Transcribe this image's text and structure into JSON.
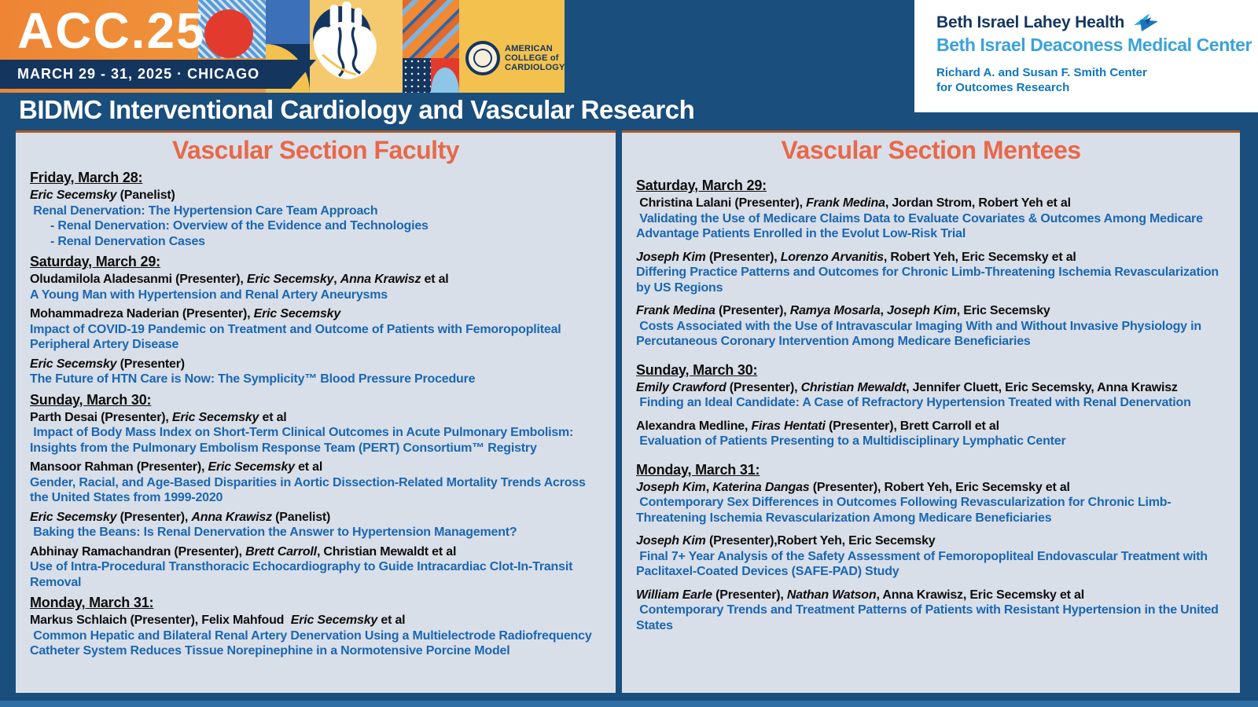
{
  "header": {
    "acc": {
      "logo_text": "ACC.25",
      "dates": "MARCH 29 - 31, 2025 · CHICAGO",
      "org_lines": [
        "AMERICAN",
        "COLLEGE of",
        "CARDIOLOGY."
      ]
    },
    "bilh": {
      "line1": "Beth Israel Lahey Health",
      "line2": "Beth Israel Deaconess Medical Center",
      "center_line1": "Richard A. and Susan F. Smith Center",
      "center_line2": "for Outcomes Research"
    },
    "page_title": "BIDMC Interventional Cardiology and Vascular Research"
  },
  "colors": {
    "background_navy": "#1a4e7d",
    "panel_bg": "#d9dfe8",
    "heading_orange": "#e8684a",
    "title_blue": "#1a67b3",
    "text_black": "#0d0d0d",
    "banner_orange": "#ee8434",
    "banner_gold": "#f2c14e",
    "ribbon_navy": "#14355e",
    "bilh_navy": "#14365f",
    "bidmc_blue": "#3aa2da",
    "smith_blue": "#0f76bf"
  },
  "panels": [
    {
      "id": "faculty",
      "title": "Vascular Section Faculty",
      "groups": [
        {
          "date": "Friday, March 28:",
          "entries": [
            {
              "authors": [
                {
                  "t": "Eric Secemsky",
                  "i": true
                },
                {
                  "t": " (Panelist)"
                }
              ],
              "titles": [
                {
                  "text": " Renal Denervation: The Hypertension Care Team Approach"
                },
                {
                  "text": "- Renal Denervation: Overview of the Evidence and Technologies",
                  "indent": true
                },
                {
                  "text": "- Renal Denervation Cases",
                  "indent": true
                }
              ]
            }
          ]
        },
        {
          "date": "Saturday, March 29:",
          "entries": [
            {
              "authors": [
                {
                  "t": "Oludamilola Aladesanmi (Presenter), "
                },
                {
                  "t": "Eric Secemsky",
                  "i": true
                },
                {
                  "t": ", "
                },
                {
                  "t": "Anna Krawisz",
                  "i": true
                },
                {
                  "t": " et al"
                }
              ],
              "titles": [
                {
                  "text": "A Young Man with Hypertension and Renal Artery Aneurysms"
                }
              ]
            },
            {
              "authors": [
                {
                  "t": "Mohammadreza Naderian (Presenter), "
                },
                {
                  "t": "Eric Secemsky",
                  "i": true
                }
              ],
              "titles": [
                {
                  "text": "Impact of COVID-19 Pandemic on Treatment and Outcome of Patients with Femoropopliteal Peripheral Artery Disease"
                }
              ]
            },
            {
              "authors": [
                {
                  "t": "Eric Secemsky",
                  "i": true
                },
                {
                  "t": " (Presenter)"
                }
              ],
              "titles": [
                {
                  "text": "The Future of HTN Care is Now: The Symplicity™ Blood Pressure Procedure"
                }
              ]
            }
          ]
        },
        {
          "date": "Sunday, March 30:",
          "entries": [
            {
              "authors": [
                {
                  "t": "Parth Desai (Presenter), "
                },
                {
                  "t": "Eric Secemsky",
                  "i": true
                },
                {
                  "t": " et al"
                }
              ],
              "titles": [
                {
                  "text": " Impact of Body Mass Index on Short-Term Clinical Outcomes in Acute Pulmonary Embolism: Insights from the Pulmonary Embolism Response Team (PERT) Consortium™ Registry"
                }
              ]
            },
            {
              "authors": [
                {
                  "t": "Mansoor Rahman (Presenter), "
                },
                {
                  "t": "Eric Secemsky",
                  "i": true
                },
                {
                  "t": " et al"
                }
              ],
              "titles": [
                {
                  "text": "Gender, Racial, and Age-Based Disparities in Aortic Dissection-Related Mortality Trends Across the United States from 1999-2020"
                }
              ]
            },
            {
              "authors": [
                {
                  "t": "Eric Secemsky",
                  "i": true
                },
                {
                  "t": " (Presenter), "
                },
                {
                  "t": "Anna Krawisz",
                  "i": true
                },
                {
                  "t": " (Panelist)"
                }
              ],
              "titles": [
                {
                  "text": " Baking the Beans: Is Renal Denervation the Answer to Hypertension Management?"
                }
              ]
            },
            {
              "authors": [
                {
                  "t": "Abhinay Ramachandran (Presenter), "
                },
                {
                  "t": "Brett Carroll",
                  "i": true
                },
                {
                  "t": ", Christian Mewaldt et al"
                }
              ],
              "titles": [
                {
                  "text": "Use of Intra-Procedural Transthoracic Echocardiography to Guide Intracardiac Clot-In-Transit Removal"
                }
              ]
            }
          ]
        },
        {
          "date": "Monday, March 31:",
          "entries": [
            {
              "authors": [
                {
                  "t": "Markus Schlaich (Presenter), Felix Mahfoud  "
                },
                {
                  "t": "Eric Secemsky",
                  "i": true
                },
                {
                  "t": " et al"
                }
              ],
              "titles": [
                {
                  "text": " Common Hepatic and Bilateral Renal Artery Denervation Using a Multielectrode Radiofrequency Catheter System Reduces Tissue Norepinephine in a Normotensive Porcine Model"
                }
              ]
            }
          ]
        }
      ]
    },
    {
      "id": "mentees",
      "title": "Vascular Section Mentees",
      "groups": [
        {
          "date": "Saturday, March 29:",
          "entries": [
            {
              "authors": [
                {
                  "t": " Christina Lalani (Presenter), "
                },
                {
                  "t": "Frank Medina",
                  "i": true
                },
                {
                  "t": ", Jordan Strom, Robert Yeh et al"
                }
              ],
              "titles": [
                {
                  "text": " Validating the Use of Medicare Claims Data to Evaluate Covariates & Outcomes Among Medicare Advantage Patients Enrolled in the Evolut Low-Risk Trial"
                }
              ]
            },
            {
              "authors": [
                {
                  "t": "Joseph Kim",
                  "i": true
                },
                {
                  "t": " (Presenter), "
                },
                {
                  "t": "Lorenzo Arvanitis",
                  "i": true
                },
                {
                  "t": ", Robert Yeh, Eric Secemsky et al"
                }
              ],
              "titles": [
                {
                  "text": "Differing Practice Patterns and Outcomes for Chronic Limb-Threatening Ischemia Revascularization by US Regions"
                }
              ]
            },
            {
              "authors": [
                {
                  "t": "Frank Medina",
                  "i": true
                },
                {
                  "t": " (Presenter), "
                },
                {
                  "t": "Ramya Mosarla",
                  "i": true
                },
                {
                  "t": ", "
                },
                {
                  "t": "Joseph Kim",
                  "i": true
                },
                {
                  "t": ", Eric Secemsky"
                }
              ],
              "titles": [
                {
                  "text": " Costs Associated with the Use of Intravascular Imaging With and Without Invasive Physiology in Percutaneous Coronary Intervention Among Medicare Beneficiaries"
                }
              ]
            }
          ]
        },
        {
          "date": "Sunday, March 30:",
          "entries": [
            {
              "authors": [
                {
                  "t": "Emily Crawford",
                  "i": true
                },
                {
                  "t": " (Presenter), "
                },
                {
                  "t": "Christian Mewaldt",
                  "i": true
                },
                {
                  "t": ", Jennifer Cluett, Eric Secemsky, Anna Krawisz"
                }
              ],
              "titles": [
                {
                  "text": " Finding an Ideal Candidate: A Case of Refractory Hypertension Treated with Renal Denervation"
                }
              ]
            },
            {
              "authors": [
                {
                  "t": "Alexandra Medline, "
                },
                {
                  "t": "Firas Hentati",
                  "i": true
                },
                {
                  "t": " (Presenter), Brett Carroll et al"
                }
              ],
              "titles": [
                {
                  "text": " Evaluation of Patients Presenting to a Multidisciplinary Lymphatic Center"
                }
              ]
            }
          ]
        },
        {
          "date": "Monday, March 31:",
          "entries": [
            {
              "authors": [
                {
                  "t": "Joseph Kim",
                  "i": true
                },
                {
                  "t": ", "
                },
                {
                  "t": "Katerina Dangas",
                  "i": true
                },
                {
                  "t": " (Presenter), Robert Yeh, Eric Secemsky et al"
                }
              ],
              "titles": [
                {
                  "text": " Contemporary Sex Differences in Outcomes Following Revascularization for Chronic Limb-Threatening Ischemia Revascularization Among Medicare Beneficiaries"
                }
              ]
            },
            {
              "authors": [
                {
                  "t": "Joseph Kim",
                  "i": true
                },
                {
                  "t": " (Presenter),Robert Yeh, Eric Secemsky"
                }
              ],
              "titles": [
                {
                  "text": " Final 7+ Year Analysis of the Safety Assessment of Femoropopliteal Endovascular Treatment with Paclitaxel-Coated Devices (SAFE-PAD) Study"
                }
              ]
            },
            {
              "authors": [
                {
                  "t": "William Earle",
                  "i": true
                },
                {
                  "t": " (Presenter), "
                },
                {
                  "t": "Nathan Watson",
                  "i": true
                },
                {
                  "t": ", Anna Krawisz, Eric Secemsky et al"
                }
              ],
              "titles": [
                {
                  "text": " Contemporary Trends and Treatment Patterns of Patients with Resistant Hypertension in the United States"
                }
              ]
            }
          ]
        }
      ]
    }
  ]
}
